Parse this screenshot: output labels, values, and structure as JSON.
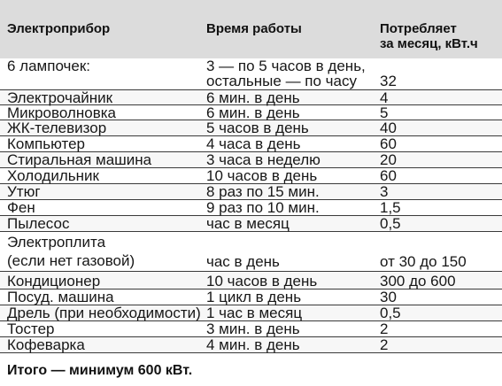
{
  "header": {
    "device": "Электроприбор",
    "time": "Время работы",
    "consumption_line1": "Потребляет",
    "consumption_line2": "за месяц, кВт.ч"
  },
  "rows": [
    {
      "device": "6 лампочек:",
      "time1": "3 — по 5 часов в день,",
      "time2": "остальные — по часу",
      "consumption": "32"
    },
    {
      "device": "Электрочайник",
      "time": "6 мин. в день",
      "consumption": "4"
    },
    {
      "device": "Микроволновка",
      "time": "6 мин. в день",
      "consumption": "5"
    },
    {
      "device": "ЖК-телевизор",
      "time": "5 часов в день",
      "consumption": "40"
    },
    {
      "device": "Компьютер",
      "time": "4 часа в день",
      "consumption": "60"
    },
    {
      "device": "Стиральная машина",
      "time": "3 часа в неделю",
      "consumption": "20"
    },
    {
      "device": "Холодильник",
      "time": "10 часов в день",
      "consumption": "60"
    },
    {
      "device": "Утюг",
      "time": "8 раз по 15 мин.",
      "consumption": "3"
    },
    {
      "device": "Фен",
      "time": "9 раз по 10 мин.",
      "consumption": "1,5"
    },
    {
      "device": "Пылесос",
      "time": "час в месяц",
      "consumption": "0,5"
    },
    {
      "device1": "Электроплита",
      "device2": "(если нет газовой)",
      "time": "час в день",
      "consumption": "от 30 до 150"
    },
    {
      "device": "Кондиционер",
      "time": "10 часов в день",
      "consumption": "300 до 600"
    },
    {
      "device": "Посуд. машина",
      "time": "1 цикл в день",
      "consumption": "30"
    },
    {
      "device": "Дрель (при необходимости)",
      "time": "1 час в месяц",
      "consumption": "0,5"
    },
    {
      "device": "Тостер",
      "time": "3 мин. в день",
      "consumption": "2"
    },
    {
      "device": "Кофеварка",
      "time": "4 мин. в день",
      "consumption": "2"
    }
  ],
  "total": "Итого — минимум 600 кВт."
}
